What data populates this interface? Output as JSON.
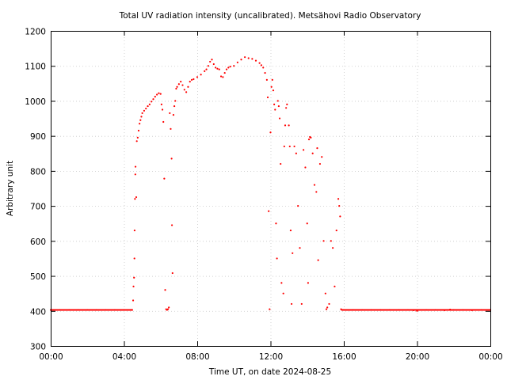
{
  "chart_data": {
    "type": "scatter",
    "title": "Total UV radiation intensity (uncalibrated). Metsähovi Radio Observatory",
    "xlabel": "Time UT, on date 2024-08-25",
    "ylabel": "Arbitrary unit",
    "xlim": [
      0,
      24
    ],
    "ylim": [
      300,
      1200
    ],
    "x_ticks": [
      0,
      4,
      8,
      12,
      16,
      20,
      24
    ],
    "x_tick_labels": [
      "00:00",
      "04:00",
      "08:00",
      "12:00",
      "16:00",
      "20:00",
      "00:00"
    ],
    "y_ticks": [
      300,
      400,
      500,
      600,
      700,
      800,
      900,
      1000,
      1100,
      1200
    ],
    "y_tick_labels": [
      "300",
      "400",
      "500",
      "600",
      "700",
      "800",
      "900",
      "1000",
      "1100",
      "1200"
    ],
    "grid": true,
    "legend": "none",
    "color": "#ff0000",
    "series": [
      {
        "points": [
          [
            0.0,
            403
          ],
          [
            0.5,
            403
          ],
          [
            1.0,
            403
          ],
          [
            1.5,
            403
          ],
          [
            2.0,
            403
          ],
          [
            2.5,
            403
          ],
          [
            3.0,
            403
          ],
          [
            3.5,
            403
          ],
          [
            4.0,
            403
          ],
          [
            4.4,
            403
          ],
          [
            4.45,
            403
          ],
          [
            4.5,
            430
          ],
          [
            4.52,
            470
          ],
          [
            4.55,
            495
          ],
          [
            4.57,
            550
          ],
          [
            4.58,
            630
          ],
          [
            4.6,
            720
          ],
          [
            4.62,
            790
          ],
          [
            4.63,
            812
          ],
          [
            4.67,
            725
          ],
          [
            4.7,
            885
          ],
          [
            4.75,
            895
          ],
          [
            4.8,
            915
          ],
          [
            4.85,
            935
          ],
          [
            4.9,
            945
          ],
          [
            4.95,
            955
          ],
          [
            5.0,
            965
          ],
          [
            5.1,
            972
          ],
          [
            5.2,
            978
          ],
          [
            5.3,
            985
          ],
          [
            5.4,
            990
          ],
          [
            5.5,
            998
          ],
          [
            5.6,
            1005
          ],
          [
            5.7,
            1012
          ],
          [
            5.8,
            1018
          ],
          [
            5.9,
            1022
          ],
          [
            6.0,
            1020
          ],
          [
            6.05,
            990
          ],
          [
            6.1,
            975
          ],
          [
            6.15,
            940
          ],
          [
            6.2,
            778
          ],
          [
            6.25,
            460
          ],
          [
            6.3,
            405
          ],
          [
            6.35,
            403
          ],
          [
            6.4,
            405
          ],
          [
            6.45,
            410
          ],
          [
            6.5,
            965
          ],
          [
            6.55,
            920
          ],
          [
            6.6,
            835
          ],
          [
            6.62,
            645
          ],
          [
            6.65,
            508
          ],
          [
            6.7,
            960
          ],
          [
            6.75,
            985
          ],
          [
            6.8,
            1000
          ],
          [
            6.85,
            1035
          ],
          [
            6.9,
            1040
          ],
          [
            7.0,
            1048
          ],
          [
            7.1,
            1055
          ],
          [
            7.2,
            1045
          ],
          [
            7.3,
            1032
          ],
          [
            7.4,
            1025
          ],
          [
            7.5,
            1040
          ],
          [
            7.6,
            1055
          ],
          [
            7.7,
            1060
          ],
          [
            7.8,
            1062
          ],
          [
            8.0,
            1068
          ],
          [
            8.2,
            1075
          ],
          [
            8.4,
            1085
          ],
          [
            8.5,
            1090
          ],
          [
            8.6,
            1100
          ],
          [
            8.7,
            1112
          ],
          [
            8.8,
            1118
          ],
          [
            8.9,
            1105
          ],
          [
            9.0,
            1095
          ],
          [
            9.1,
            1092
          ],
          [
            9.2,
            1090
          ],
          [
            9.3,
            1070
          ],
          [
            9.4,
            1068
          ],
          [
            9.5,
            1080
          ],
          [
            9.6,
            1090
          ],
          [
            9.7,
            1095
          ],
          [
            9.8,
            1098
          ],
          [
            10.0,
            1100
          ],
          [
            10.2,
            1110
          ],
          [
            10.4,
            1118
          ],
          [
            10.6,
            1125
          ],
          [
            10.8,
            1122
          ],
          [
            11.0,
            1120
          ],
          [
            11.2,
            1115
          ],
          [
            11.4,
            1108
          ],
          [
            11.5,
            1102
          ],
          [
            11.6,
            1095
          ],
          [
            11.7,
            1080
          ],
          [
            11.8,
            1060
          ],
          [
            11.85,
            1010
          ],
          [
            11.9,
            685
          ],
          [
            11.95,
            405
          ],
          [
            12.0,
            910
          ],
          [
            12.05,
            1040
          ],
          [
            12.1,
            1060
          ],
          [
            12.15,
            1030
          ],
          [
            12.2,
            990
          ],
          [
            12.25,
            975
          ],
          [
            12.3,
            650
          ],
          [
            12.35,
            550
          ],
          [
            12.4,
            1000
          ],
          [
            12.45,
            985
          ],
          [
            12.5,
            950
          ],
          [
            12.55,
            820
          ],
          [
            12.6,
            480
          ],
          [
            12.7,
            450
          ],
          [
            12.75,
            870
          ],
          [
            12.8,
            930
          ],
          [
            12.85,
            980
          ],
          [
            12.9,
            990
          ],
          [
            13.0,
            930
          ],
          [
            13.05,
            870
          ],
          [
            13.1,
            630
          ],
          [
            13.15,
            420
          ],
          [
            13.2,
            565
          ],
          [
            13.3,
            870
          ],
          [
            13.4,
            850
          ],
          [
            13.5,
            700
          ],
          [
            13.6,
            580
          ],
          [
            13.7,
            420
          ],
          [
            13.8,
            860
          ],
          [
            13.9,
            810
          ],
          [
            14.0,
            650
          ],
          [
            14.05,
            480
          ],
          [
            14.1,
            890
          ],
          [
            14.15,
            897
          ],
          [
            14.2,
            895
          ],
          [
            14.3,
            850
          ],
          [
            14.4,
            760
          ],
          [
            14.5,
            740
          ],
          [
            14.55,
            865
          ],
          [
            14.6,
            545
          ],
          [
            14.7,
            820
          ],
          [
            14.8,
            840
          ],
          [
            14.9,
            600
          ],
          [
            15.0,
            450
          ],
          [
            15.05,
            405
          ],
          [
            15.1,
            410
          ],
          [
            15.2,
            420
          ],
          [
            15.3,
            600
          ],
          [
            15.4,
            580
          ],
          [
            15.5,
            470
          ],
          [
            15.6,
            630
          ],
          [
            15.7,
            720
          ],
          [
            15.75,
            700
          ],
          [
            15.8,
            670
          ],
          [
            15.85,
            405
          ],
          [
            15.9,
            403
          ],
          [
            16.0,
            403
          ],
          [
            16.5,
            403
          ],
          [
            17.0,
            403
          ],
          [
            17.5,
            403
          ],
          [
            18.0,
            403
          ],
          [
            18.5,
            403
          ],
          [
            19.0,
            403
          ],
          [
            19.5,
            403
          ],
          [
            19.8,
            402
          ],
          [
            20.0,
            400
          ],
          [
            20.5,
            403
          ],
          [
            21.0,
            403
          ],
          [
            21.5,
            402
          ],
          [
            21.8,
            404
          ],
          [
            22.0,
            403
          ],
          [
            22.5,
            403
          ],
          [
            23.0,
            402
          ],
          [
            23.5,
            403
          ],
          [
            24.0,
            403
          ]
        ]
      }
    ]
  }
}
